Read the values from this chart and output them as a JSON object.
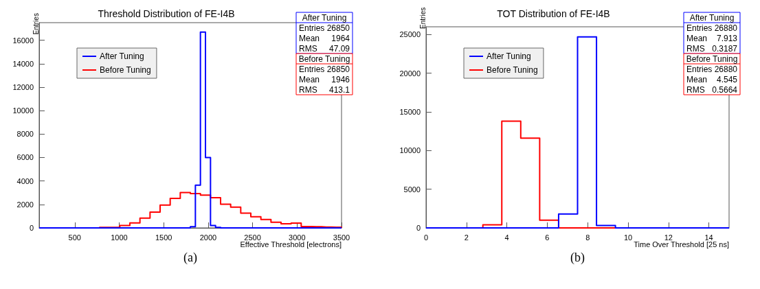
{
  "chart_data": [
    {
      "type": "histogram",
      "title": "Threshold Distribution of FE-I4B",
      "xlabel": "Effective Threshold [electrons]",
      "ylabel": "Entries",
      "xlim": [
        100,
        3500
      ],
      "xticks": [
        500,
        1000,
        1500,
        2000,
        2500,
        3000,
        3500
      ],
      "ylim": [
        0,
        17500
      ],
      "yticks": [
        0,
        2000,
        4000,
        6000,
        8000,
        10000,
        12000,
        14000,
        16000
      ],
      "grid": false,
      "legend": "top left",
      "bins": [
        100,
        156.7,
        213.3,
        270,
        326.7,
        383.3,
        440,
        496.7,
        553.3,
        610,
        666.7,
        723.3,
        780,
        836.7,
        893.3,
        950,
        1006.7,
        1063.3,
        1120,
        1176.7,
        1233.3,
        1290,
        1346.7,
        1403.3,
        1460,
        1516.7,
        1573.3,
        1630,
        1686.7,
        1743.3,
        1800,
        1856.7,
        1913.3,
        1970,
        2026.7,
        2083.3,
        2140,
        2196.7,
        2253.3,
        2310,
        2366.7,
        2423.3,
        2480,
        2536.7,
        2593.3,
        2650,
        2706.7,
        2763.3,
        2820,
        2876.7,
        2933.3,
        2990,
        3046.7,
        3103.3,
        3160,
        3216.7,
        3273.3,
        3330,
        3386.7,
        3443.3,
        3500
      ],
      "series": [
        {
          "name": "After Tuning",
          "color": "#0000ff",
          "values": [
            0,
            0,
            0,
            0,
            0,
            0,
            0,
            0,
            0,
            0,
            0,
            0,
            0,
            0,
            0,
            0,
            0,
            0,
            0,
            0,
            0,
            0,
            0,
            0,
            0,
            0,
            0,
            0,
            0,
            0,
            100,
            3650,
            16700,
            6000,
            200,
            50,
            0,
            0,
            0,
            0,
            0,
            0,
            0,
            0,
            0,
            0,
            0,
            0,
            0,
            0,
            0,
            0,
            0,
            0,
            0,
            0,
            0,
            0,
            0,
            0
          ]
        },
        {
          "name": "Before Tuning",
          "color": "#ff0000",
          "values": [
            0,
            0,
            0,
            0,
            0,
            0,
            0,
            0,
            0,
            0,
            0,
            0,
            50,
            50,
            50,
            50,
            210,
            210,
            430,
            430,
            830,
            830,
            1340,
            1340,
            1940,
            1940,
            2520,
            2520,
            3010,
            3010,
            2930,
            2930,
            2800,
            2800,
            2580,
            2580,
            2020,
            2020,
            1770,
            1770,
            1260,
            1260,
            950,
            950,
            720,
            720,
            490,
            490,
            350,
            350,
            410,
            410,
            120,
            120,
            100,
            100,
            80,
            80,
            60,
            60
          ]
        }
      ],
      "annotations": [
        "After Tuning",
        "Entries 26850",
        "Mean 1964",
        "RMS 47.09",
        "Before Tuning",
        "Entries 26850",
        "Mean 1946",
        "RMS 413.1",
        "(a)"
      ]
    },
    {
      "type": "histogram",
      "title": "TOT Distribution of FE-I4B",
      "xlabel": "Time Over Threshold [25 ns]",
      "ylabel": "Entries",
      "xlim": [
        0,
        15
      ],
      "xticks": [
        0,
        2,
        4,
        6,
        8,
        10,
        12,
        14
      ],
      "ylim": [
        0,
        26000
      ],
      "yticks": [
        0,
        5000,
        10000,
        15000,
        20000,
        25000
      ],
      "grid": false,
      "legend": "top left",
      "bins": [
        0,
        0.9375,
        1.875,
        2.8125,
        3.75,
        4.6875,
        5.625,
        6.5625,
        7.5,
        8.4375,
        9.375,
        10.3125,
        11.25,
        12.1875,
        13.125,
        14.0625,
        15
      ],
      "series": [
        {
          "name": "After Tuning",
          "color": "#0000ff",
          "values": [
            0,
            0,
            0,
            0,
            0,
            0,
            0,
            1800,
            24700,
            300,
            0,
            0,
            0,
            0,
            0,
            0
          ]
        },
        {
          "name": "Before Tuning",
          "color": "#ff0000",
          "values": [
            0,
            0,
            0,
            400,
            13800,
            11600,
            1000,
            0,
            0,
            0,
            0,
            0,
            0,
            0,
            0,
            0
          ]
        }
      ],
      "annotations": [
        "After Tuning",
        "Entries 26880",
        "Mean 7.913",
        "RMS 0.3187",
        "Before Tuning",
        "Entries 26880",
        "Mean 4.545",
        "RMS 0.5664",
        "(b)"
      ]
    }
  ]
}
